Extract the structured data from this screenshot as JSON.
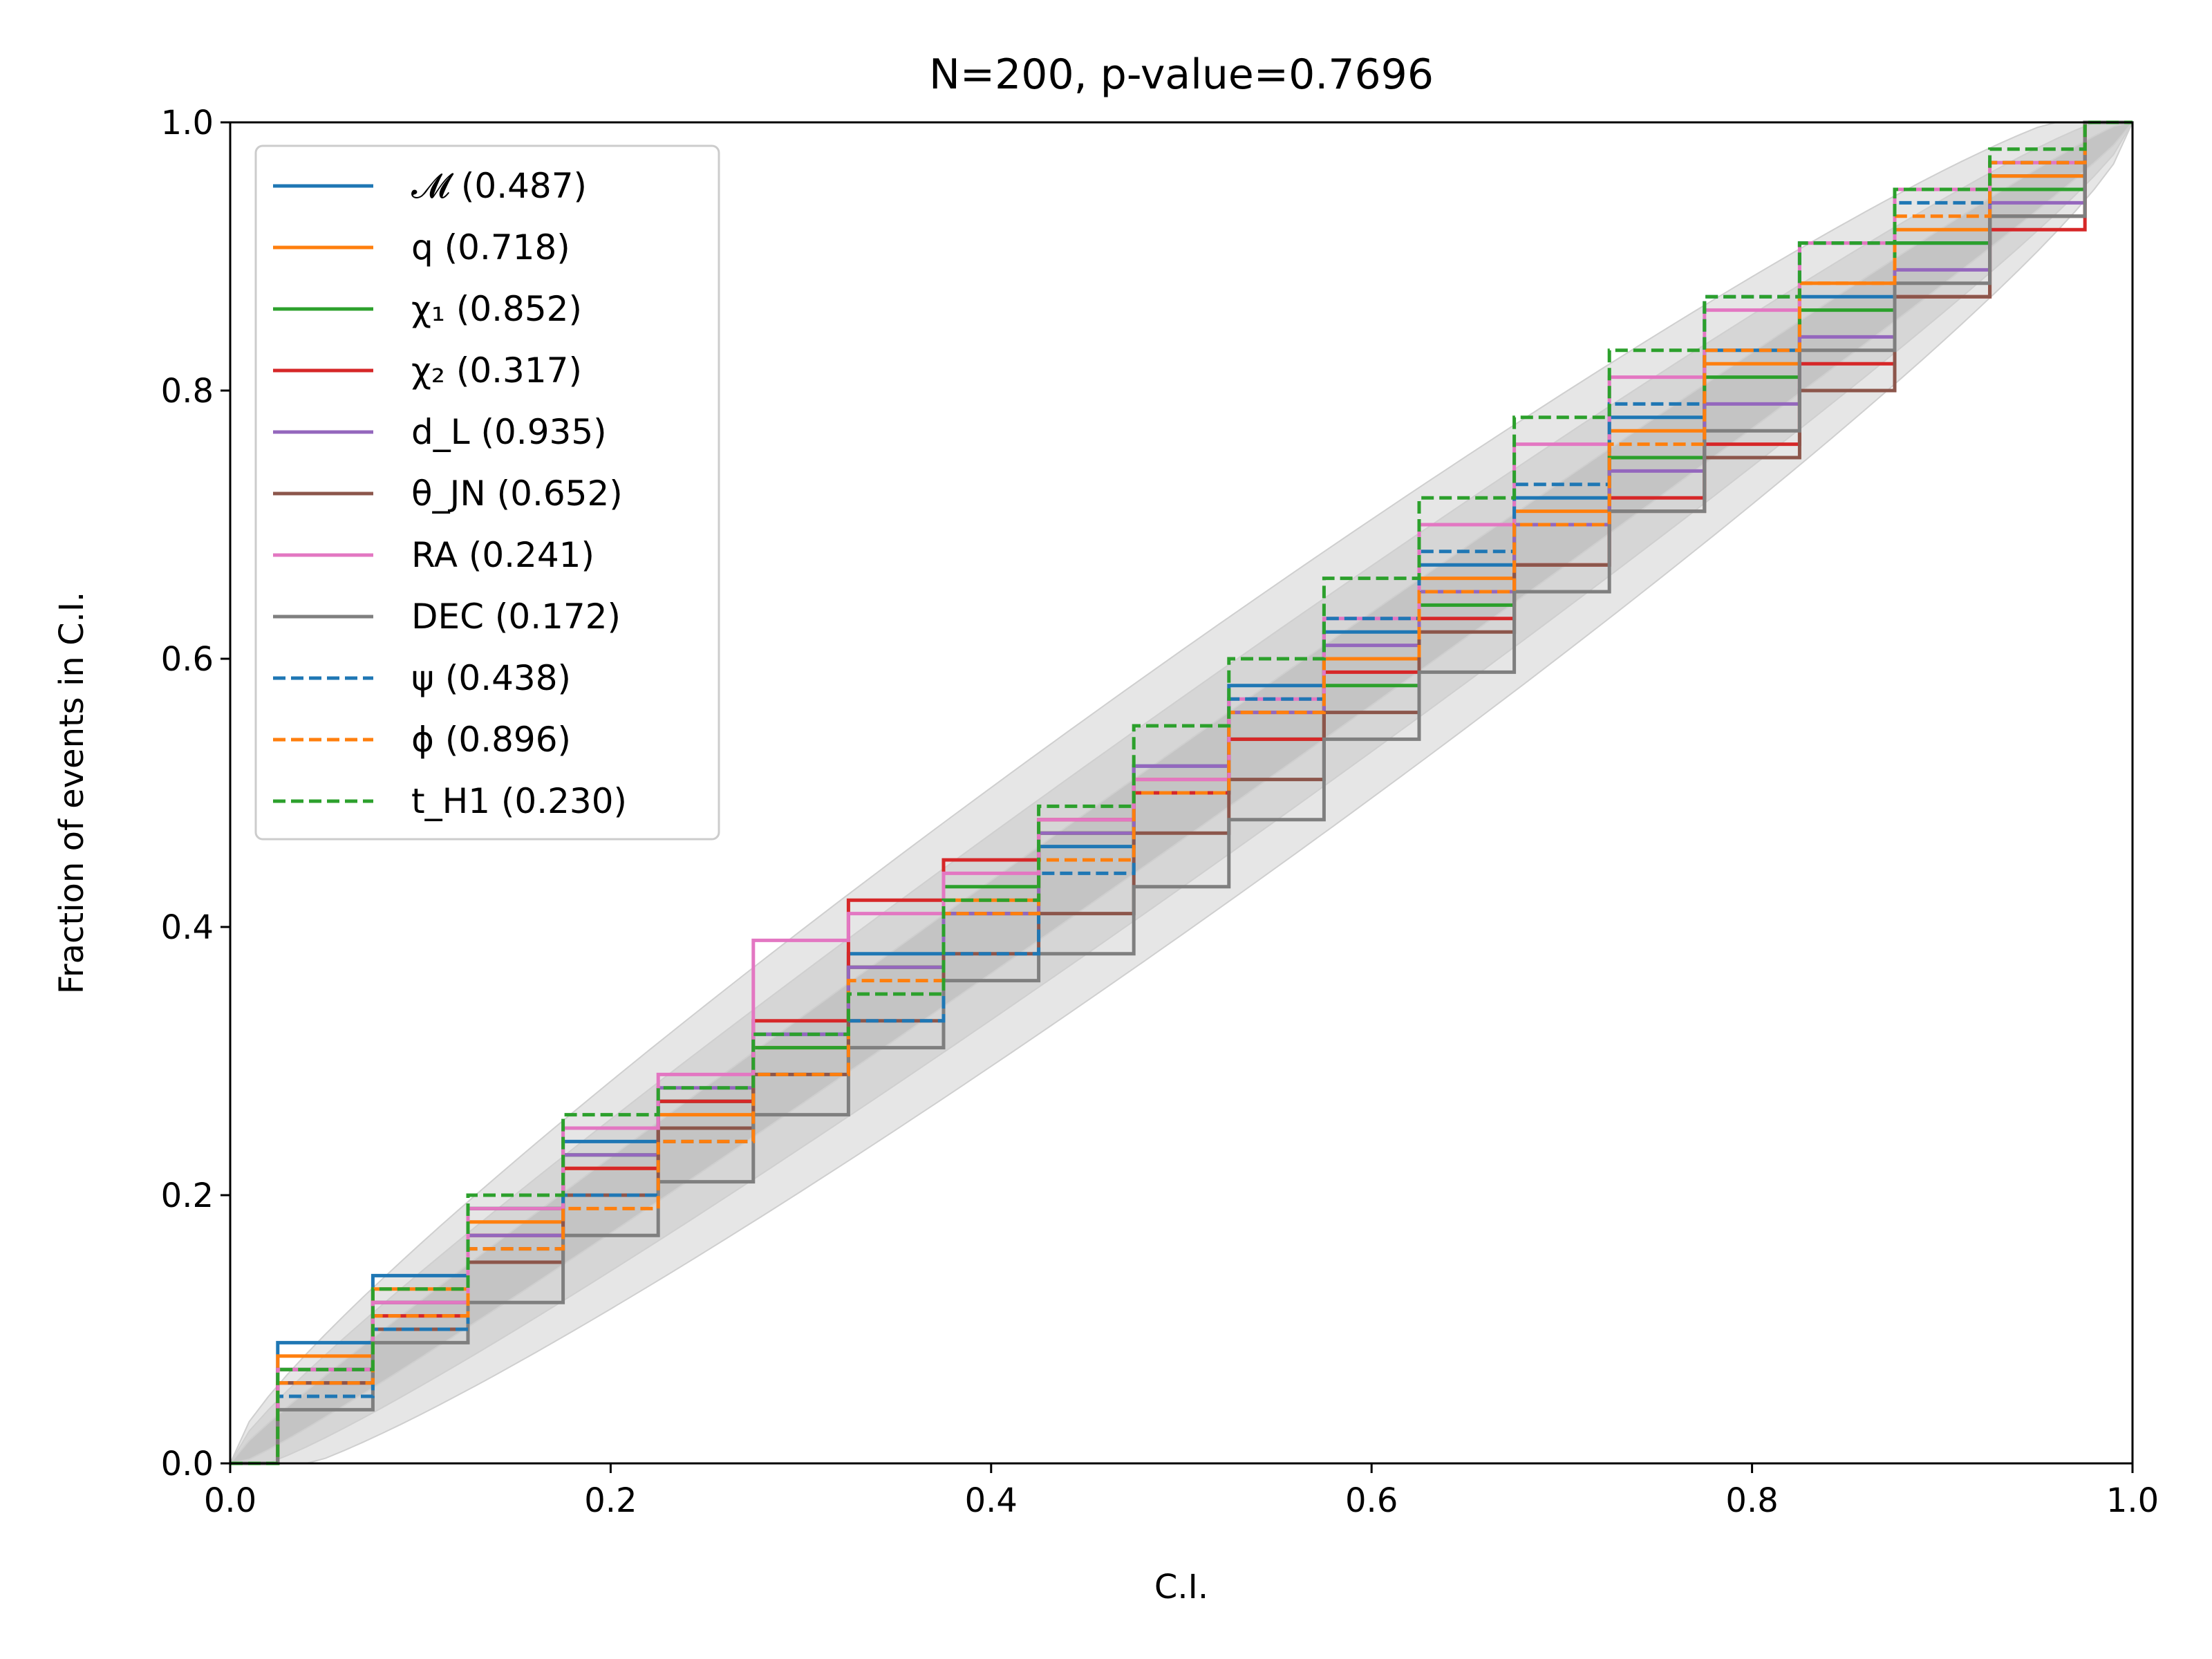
{
  "chart_data": {
    "type": "line",
    "title": "N=200, p-value=0.7696",
    "xlabel": "C.I.",
    "ylabel": "Fraction of events in C.I.",
    "xlim": [
      0.0,
      1.0
    ],
    "ylim": [
      0.0,
      1.0
    ],
    "xticks": [
      "0.0",
      "0.2",
      "0.4",
      "0.6",
      "0.8",
      "1.0"
    ],
    "yticks": [
      "0.0",
      "0.2",
      "0.4",
      "0.6",
      "0.8",
      "1.0"
    ],
    "grid": false,
    "legend_position": "upper-left",
    "confidence_bands": [
      {
        "level": "1-sigma",
        "color": "#c4c4c4"
      },
      {
        "level": "2-sigma",
        "color": "#d6d6d6"
      },
      {
        "level": "3-sigma",
        "color": "#e6e6e6"
      }
    ],
    "series": [
      {
        "name": "𝓜 (0.487)",
        "color": "#1f77b4",
        "dash": "solid",
        "x": [
          0,
          0.05,
          0.1,
          0.15,
          0.2,
          0.25,
          0.3,
          0.35,
          0.4,
          0.45,
          0.5,
          0.55,
          0.6,
          0.65,
          0.7,
          0.75,
          0.8,
          0.85,
          0.9,
          0.95,
          1.0
        ],
        "y": [
          0,
          0.09,
          0.14,
          0.19,
          0.24,
          0.27,
          0.32,
          0.38,
          0.41,
          0.46,
          0.52,
          0.58,
          0.62,
          0.67,
          0.72,
          0.78,
          0.83,
          0.87,
          0.91,
          0.96,
          1.0
        ]
      },
      {
        "name": "q (0.718)",
        "color": "#ff7f0e",
        "dash": "solid",
        "x": [
          0,
          0.05,
          0.1,
          0.15,
          0.2,
          0.25,
          0.3,
          0.35,
          0.4,
          0.45,
          0.5,
          0.55,
          0.6,
          0.65,
          0.7,
          0.75,
          0.8,
          0.85,
          0.9,
          0.95,
          1.0
        ],
        "y": [
          0,
          0.08,
          0.13,
          0.18,
          0.22,
          0.26,
          0.31,
          0.37,
          0.42,
          0.47,
          0.51,
          0.56,
          0.6,
          0.66,
          0.71,
          0.77,
          0.82,
          0.88,
          0.92,
          0.96,
          1.0
        ]
      },
      {
        "name": "χ₁ (0.852)",
        "color": "#2ca02c",
        "dash": "solid",
        "x": [
          0,
          0.05,
          0.1,
          0.15,
          0.2,
          0.25,
          0.3,
          0.35,
          0.4,
          0.45,
          0.5,
          0.55,
          0.6,
          0.65,
          0.7,
          0.75,
          0.8,
          0.85,
          0.9,
          0.95,
          1.0
        ],
        "y": [
          0,
          0.07,
          0.12,
          0.19,
          0.23,
          0.27,
          0.31,
          0.37,
          0.43,
          0.47,
          0.5,
          0.54,
          0.58,
          0.64,
          0.7,
          0.75,
          0.81,
          0.86,
          0.91,
          0.95,
          1.0
        ]
      },
      {
        "name": "χ₂ (0.317)",
        "color": "#d62728",
        "dash": "solid",
        "x": [
          0,
          0.05,
          0.1,
          0.15,
          0.2,
          0.25,
          0.3,
          0.35,
          0.4,
          0.45,
          0.5,
          0.55,
          0.6,
          0.65,
          0.7,
          0.75,
          0.8,
          0.85,
          0.9,
          0.95,
          1.0
        ],
        "y": [
          0,
          0.06,
          0.11,
          0.17,
          0.22,
          0.27,
          0.33,
          0.42,
          0.45,
          0.48,
          0.5,
          0.54,
          0.59,
          0.63,
          0.67,
          0.72,
          0.76,
          0.82,
          0.87,
          0.92,
          1.0
        ]
      },
      {
        "name": "d_L (0.935)",
        "color": "#9467bd",
        "dash": "solid",
        "x": [
          0,
          0.05,
          0.1,
          0.15,
          0.2,
          0.25,
          0.3,
          0.35,
          0.4,
          0.45,
          0.5,
          0.55,
          0.6,
          0.65,
          0.7,
          0.75,
          0.8,
          0.85,
          0.9,
          0.95,
          1.0
        ],
        "y": [
          0,
          0.07,
          0.12,
          0.17,
          0.23,
          0.28,
          0.32,
          0.37,
          0.41,
          0.47,
          0.52,
          0.56,
          0.61,
          0.65,
          0.7,
          0.74,
          0.79,
          0.84,
          0.89,
          0.94,
          1.0
        ]
      },
      {
        "name": "θ_JN (0.652)",
        "color": "#8c564b",
        "dash": "solid",
        "x": [
          0,
          0.05,
          0.1,
          0.15,
          0.2,
          0.25,
          0.3,
          0.35,
          0.4,
          0.45,
          0.5,
          0.55,
          0.6,
          0.65,
          0.7,
          0.75,
          0.8,
          0.85,
          0.9,
          0.95,
          1.0
        ],
        "y": [
          0,
          0.06,
          0.1,
          0.15,
          0.2,
          0.25,
          0.29,
          0.33,
          0.38,
          0.41,
          0.47,
          0.51,
          0.56,
          0.62,
          0.67,
          0.71,
          0.75,
          0.8,
          0.87,
          0.93,
          1.0
        ]
      },
      {
        "name": "RA (0.241)",
        "color": "#e377c2",
        "dash": "solid",
        "x": [
          0,
          0.05,
          0.1,
          0.15,
          0.2,
          0.25,
          0.3,
          0.35,
          0.4,
          0.45,
          0.5,
          0.55,
          0.6,
          0.65,
          0.7,
          0.75,
          0.8,
          0.85,
          0.9,
          0.95,
          1.0
        ],
        "y": [
          0,
          0.07,
          0.12,
          0.19,
          0.25,
          0.29,
          0.39,
          0.41,
          0.44,
          0.48,
          0.51,
          0.57,
          0.63,
          0.7,
          0.76,
          0.81,
          0.86,
          0.91,
          0.95,
          0.97,
          1.0
        ]
      },
      {
        "name": "DEC (0.172)",
        "color": "#7f7f7f",
        "dash": "solid",
        "x": [
          0,
          0.05,
          0.1,
          0.15,
          0.2,
          0.25,
          0.3,
          0.35,
          0.4,
          0.45,
          0.5,
          0.55,
          0.6,
          0.65,
          0.7,
          0.75,
          0.8,
          0.85,
          0.9,
          0.95,
          1.0
        ],
        "y": [
          0,
          0.04,
          0.09,
          0.12,
          0.17,
          0.21,
          0.26,
          0.31,
          0.36,
          0.38,
          0.43,
          0.48,
          0.54,
          0.59,
          0.65,
          0.71,
          0.77,
          0.83,
          0.88,
          0.93,
          1.0
        ]
      },
      {
        "name": "ψ (0.438)",
        "color": "#1f77b4",
        "dash": "dashed",
        "x": [
          0,
          0.05,
          0.1,
          0.15,
          0.2,
          0.25,
          0.3,
          0.35,
          0.4,
          0.45,
          0.5,
          0.55,
          0.6,
          0.65,
          0.7,
          0.75,
          0.8,
          0.85,
          0.9,
          0.95,
          1.0
        ],
        "y": [
          0,
          0.05,
          0.1,
          0.16,
          0.2,
          0.24,
          0.29,
          0.33,
          0.38,
          0.44,
          0.5,
          0.57,
          0.63,
          0.68,
          0.73,
          0.79,
          0.87,
          0.91,
          0.94,
          0.97,
          1.0
        ]
      },
      {
        "name": "ϕ (0.896)",
        "color": "#ff7f0e",
        "dash": "dashed",
        "x": [
          0,
          0.05,
          0.1,
          0.15,
          0.2,
          0.25,
          0.3,
          0.35,
          0.4,
          0.45,
          0.5,
          0.55,
          0.6,
          0.65,
          0.7,
          0.75,
          0.8,
          0.85,
          0.9,
          0.95,
          1.0
        ],
        "y": [
          0,
          0.06,
          0.11,
          0.16,
          0.19,
          0.24,
          0.29,
          0.36,
          0.41,
          0.45,
          0.5,
          0.56,
          0.6,
          0.65,
          0.7,
          0.76,
          0.83,
          0.88,
          0.93,
          0.97,
          1.0
        ]
      },
      {
        "name": "t_H1 (0.230)",
        "color": "#2ca02c",
        "dash": "dashed",
        "x": [
          0,
          0.05,
          0.1,
          0.15,
          0.2,
          0.25,
          0.3,
          0.35,
          0.4,
          0.45,
          0.5,
          0.55,
          0.6,
          0.65,
          0.7,
          0.75,
          0.8,
          0.85,
          0.9,
          0.95,
          1.0
        ],
        "y": [
          0,
          0.07,
          0.13,
          0.2,
          0.26,
          0.28,
          0.32,
          0.35,
          0.42,
          0.49,
          0.55,
          0.6,
          0.66,
          0.72,
          0.78,
          0.83,
          0.87,
          0.91,
          0.95,
          0.98,
          1.0
        ]
      }
    ]
  }
}
